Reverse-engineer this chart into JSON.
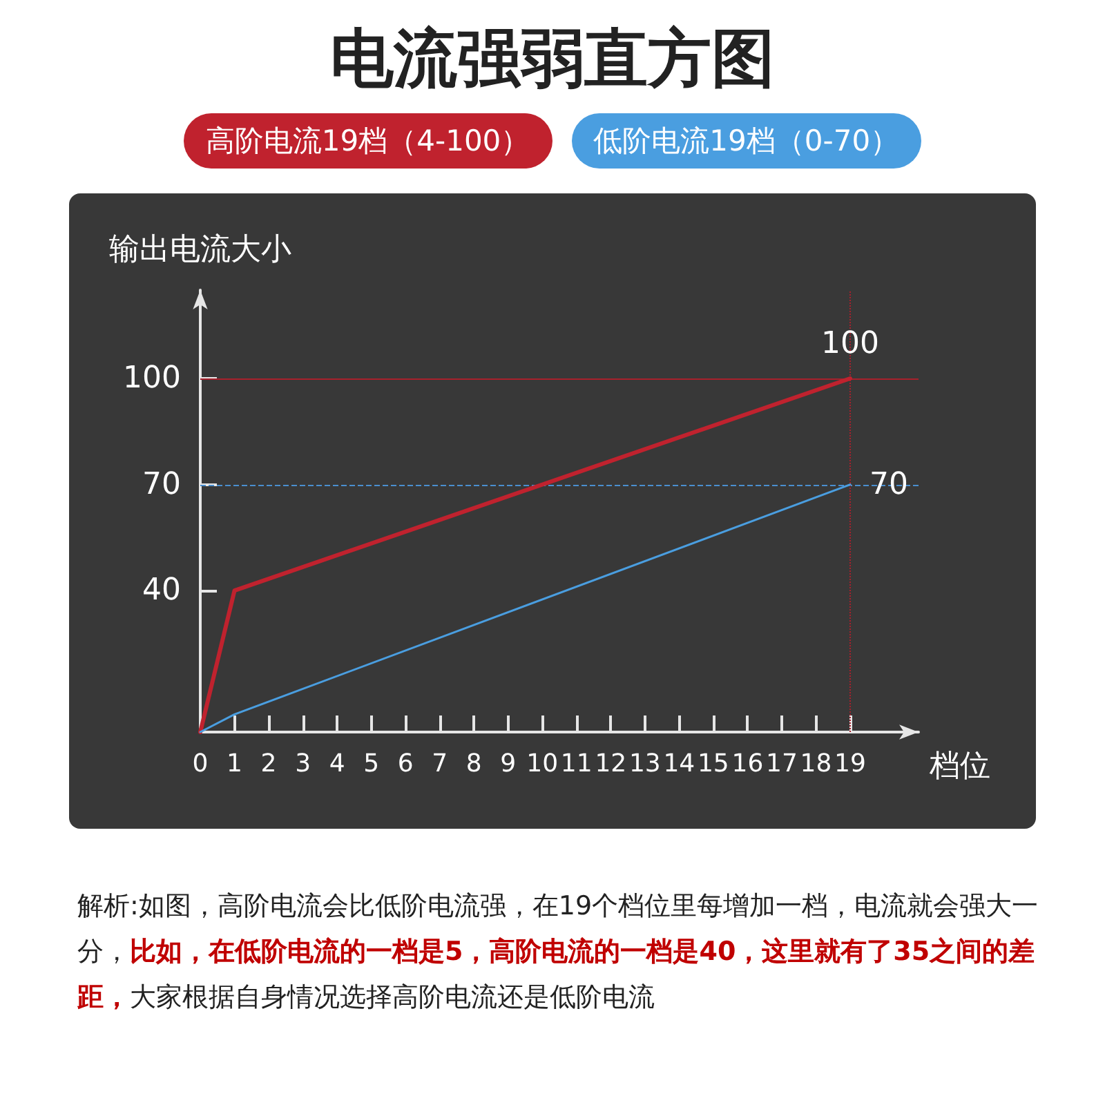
{
  "chart_data": {
    "type": "line",
    "title": "电流强弱直方图",
    "xlabel": "档位",
    "ylabel": "输出电流大小",
    "x": [
      0,
      1,
      19
    ],
    "series": [
      {
        "name": "高阶电流19档（4-100）",
        "color": "#c0222e",
        "values": [
          0,
          40,
          100
        ],
        "value_labels": [
          null,
          null,
          "100"
        ]
      },
      {
        "name": "低阶电流19档（0-70）",
        "color": "#4a9ee0",
        "values": [
          0,
          5,
          70
        ],
        "value_labels": [
          null,
          null,
          "70"
        ]
      }
    ],
    "xlim": [
      0,
      21
    ],
    "xticks": [
      0,
      1,
      2,
      3,
      4,
      5,
      6,
      7,
      8,
      9,
      10,
      11,
      12,
      13,
      14,
      15,
      16,
      17,
      18,
      19
    ],
    "ylim": [
      0,
      125
    ],
    "yticks": [
      40,
      70,
      100
    ],
    "ref_lines": [
      {
        "axis": "y",
        "value": 100,
        "color": "#a8202c",
        "line_style": "solid"
      },
      {
        "axis": "y",
        "value": 70,
        "color": "#4a8fd0",
        "line_style": "dashed"
      },
      {
        "axis": "x",
        "value": 19,
        "color": "#a8202c",
        "line_style": "dotted"
      }
    ],
    "grid": false,
    "legend": "top",
    "marker": "none",
    "line_style": "solid",
    "annotations": [
      "解析:如图，高阶电流会比低阶电流强，在19个档位里每增加一档，电流就会强大一分，",
      "比如，在低阶电流的一档是5，高阶电流的一档是40，这里就有了35之间的差距，",
      "大家根据自身情况选择高阶电流还是低阶电流"
    ]
  }
}
